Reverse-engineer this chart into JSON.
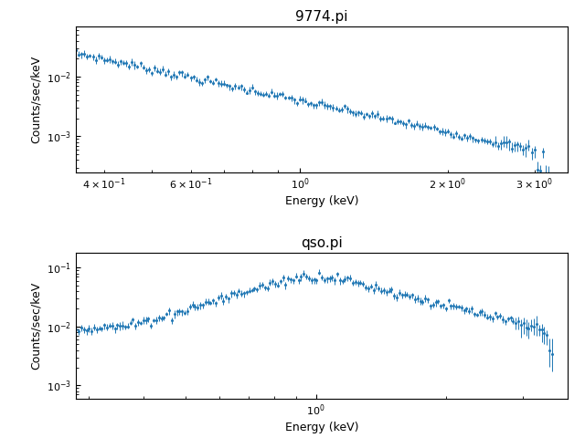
{
  "title1": "9774.pi",
  "title2": "qso.pi",
  "xlabel": "Energy (keV)",
  "ylabel": "Counts/sec/keV",
  "color": "#1f77b4",
  "fig_width": 6.4,
  "fig_height": 4.8,
  "dpi": 100,
  "panel1_xlim": [
    0.35,
    3.5
  ],
  "panel1_ylim": [
    0.00025,
    0.07
  ],
  "panel2_xlim": [
    0.28,
    3.8
  ],
  "panel2_ylim": [
    0.0006,
    0.18
  ]
}
